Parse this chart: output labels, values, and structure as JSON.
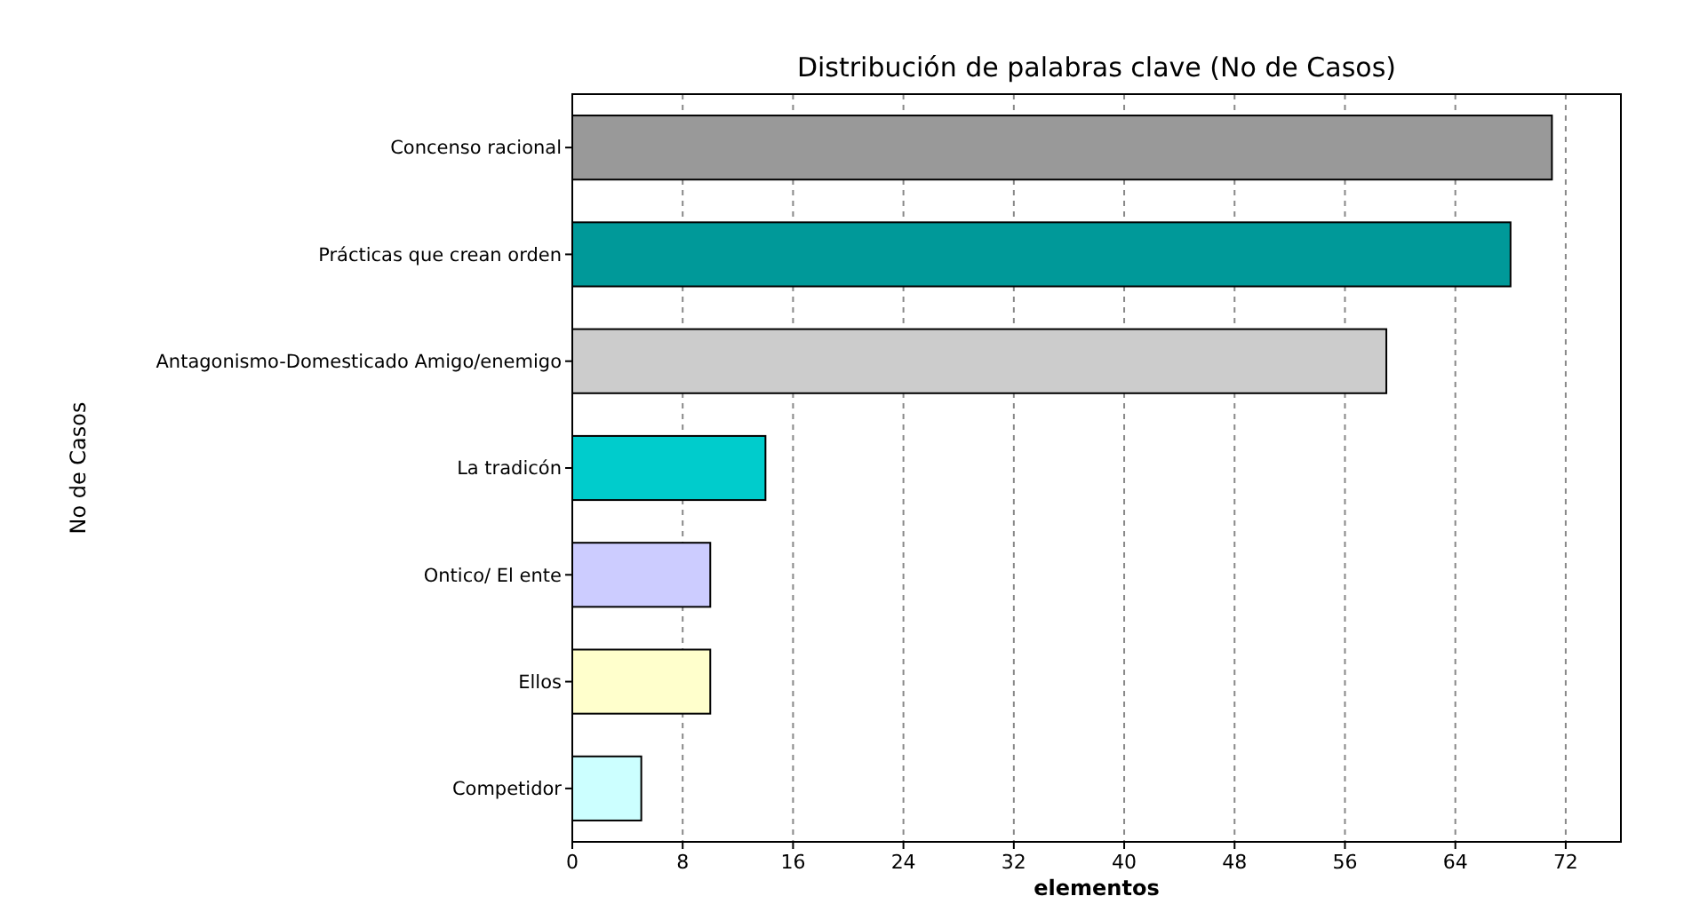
{
  "chart_data": {
    "type": "bar",
    "orientation": "horizontal",
    "title": "Distribución de palabras clave (No de Casos)",
    "xlabel": "elementos",
    "ylabel": "No de Casos",
    "categories": [
      "Concenso racional",
      "Prácticas que crean orden",
      "Antagonismo-Domesticado Amigo/enemigo",
      "La tradicón",
      "Ontico/ El ente",
      "Ellos",
      "Competidor"
    ],
    "values": [
      71,
      68,
      59,
      14,
      10,
      10,
      5
    ],
    "colors": [
      "#999999",
      "#009999",
      "#cccccc",
      "#00cccc",
      "#ccccff",
      "#ffffcc",
      "#ccffff"
    ],
    "xlim": [
      0,
      76
    ],
    "xticks": [
      0,
      8,
      16,
      24,
      32,
      40,
      48,
      56,
      64,
      72
    ],
    "grid": "x"
  }
}
